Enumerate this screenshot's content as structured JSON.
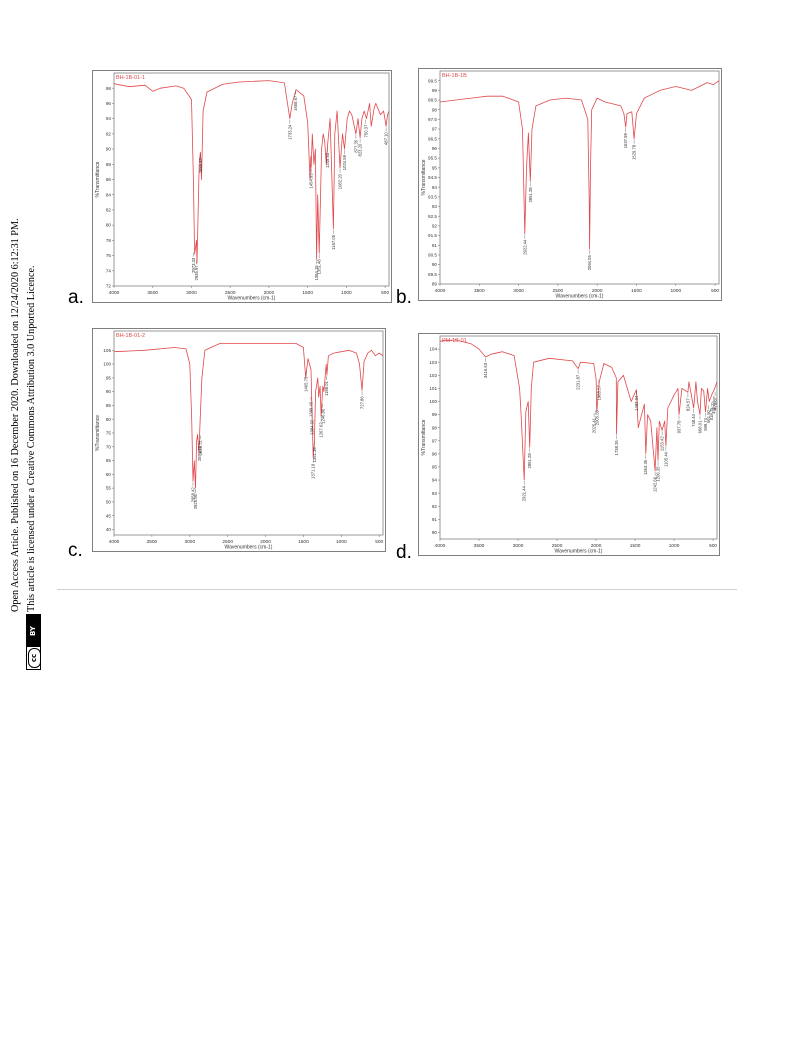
{
  "sidebar": {
    "line1": "Open Access Article. Published on 16 December 2020. Downloaded on 12/24/2020 6:12:31 PM.",
    "line2": "This article is licensed under a Creative Commons Attribution 3.0 Unported Licence.",
    "badge_cc": "cc",
    "badge_by": "BY"
  },
  "colors": {
    "spectrum": "#e0484c",
    "frame": "#7f7f7f",
    "text": "#333333"
  },
  "chart_data": [
    {
      "type": "line",
      "panel_label": "a.",
      "sample_id": "BH-1B-01-1",
      "xlabel": "Wavenumbers (cm-1)",
      "ylabel": "%Transmittance",
      "xlim": [
        4000,
        450
      ],
      "ylim": [
        72,
        100
      ],
      "xticks": [
        4000,
        3500,
        3000,
        2500,
        2000,
        1500,
        1000,
        500
      ],
      "yticks": [
        72,
        74,
        76,
        78,
        80,
        82,
        84,
        86,
        88,
        90,
        92,
        94,
        96,
        98
      ],
      "series": [
        {
          "x": [
            4000,
            3800,
            3600,
            3500,
            3400,
            3200,
            3100,
            3000,
            2975,
            2960,
            2935,
            2928,
            2900,
            2885,
            2870,
            2850,
            2800,
            2600,
            2400,
            2000,
            1800,
            1730,
            1700,
            1650,
            1550,
            1500,
            1470,
            1460,
            1454,
            1440,
            1420,
            1400,
            1384,
            1370,
            1351,
            1320,
            1300,
            1280,
            1260,
            1245,
            1210,
            1168,
            1150,
            1120,
            1082,
            1050,
            1025,
            990,
            960,
            930,
            877,
            850,
            823,
            800,
            770,
            740,
            700,
            680,
            640,
            620,
            600,
            560,
            520,
            487,
            470,
            450
          ],
          "y": [
            98.6,
            98.2,
            98.4,
            97.6,
            98.0,
            98.3,
            98.0,
            96.5,
            86.0,
            76.2,
            78.0,
            75.0,
            88.0,
            89.6,
            86.0,
            95.0,
            97.5,
            98.5,
            98.8,
            99.0,
            98.7,
            94.0,
            96.0,
            97.8,
            97.0,
            93.5,
            86.0,
            89.0,
            87.6,
            92.0,
            88.0,
            90.0,
            75.5,
            84.0,
            76.3,
            90.0,
            92.0,
            91.0,
            88.0,
            90.3,
            94.0,
            79.5,
            92.0,
            95.0,
            87.5,
            92.0,
            90.0,
            94.0,
            95.0,
            94.5,
            92.0,
            94.0,
            91.5,
            94.0,
            95.0,
            94.0,
            96.0,
            93.0,
            95.5,
            96.0,
            95.5,
            94.5,
            95.0,
            93.0,
            94.5,
            95.0
          ]
        }
      ],
      "annotations": [
        {
          "x": 2973,
          "y": 76.5,
          "label": "2973.33"
        },
        {
          "x": 2935,
          "y": 75.5,
          "label": "2935.97"
        },
        {
          "x": 2885,
          "y": 89.6,
          "label": "2885.42"
        },
        {
          "x": 1730,
          "y": 94.0,
          "label": "1733.24"
        },
        {
          "x": 1654,
          "y": 97.8,
          "label": "1658.67"
        },
        {
          "x": 1454,
          "y": 87.6,
          "label": "1454.93"
        },
        {
          "x": 1384,
          "y": 75.5,
          "label": "1384.15"
        },
        {
          "x": 1351,
          "y": 76.3,
          "label": "1351.48"
        },
        {
          "x": 1245,
          "y": 90.3,
          "label": "1245.53"
        },
        {
          "x": 1168,
          "y": 79.5,
          "label": "1167.05"
        },
        {
          "x": 1082,
          "y": 87.5,
          "label": "1082.20"
        },
        {
          "x": 1025,
          "y": 90.0,
          "label": "1024.59"
        },
        {
          "x": 877,
          "y": 92.0,
          "label": "877.35"
        },
        {
          "x": 823,
          "y": 91.5,
          "label": "823.20"
        },
        {
          "x": 750,
          "y": 94.0,
          "label": "750.37"
        },
        {
          "x": 487,
          "y": 93.0,
          "label": "487.10"
        }
      ]
    },
    {
      "type": "line",
      "panel_label": "b.",
      "sample_id": "BH-1B-1B",
      "xlabel": "Wavenumbers (cm-1)",
      "ylabel": "%Transmittance",
      "xlim": [
        4000,
        450
      ],
      "ylim": [
        89.0,
        100.0
      ],
      "xticks": [
        4000,
        3500,
        3000,
        2500,
        2000,
        1500,
        1000,
        500
      ],
      "yticks": [
        89.0,
        89.5,
        90.0,
        90.5,
        91.0,
        91.5,
        92.0,
        92.5,
        93.0,
        93.5,
        94.0,
        94.5,
        95.0,
        95.5,
        96.0,
        96.5,
        97.0,
        97.5,
        98.0,
        98.5,
        99.0,
        99.5
      ],
      "series": [
        {
          "x": [
            4000,
            3800,
            3600,
            3400,
            3200,
            3000,
            2950,
            2921,
            2900,
            2875,
            2851,
            2830,
            2780,
            2600,
            2400,
            2200,
            2120,
            2100,
            2096,
            2085,
            2070,
            2000,
            1900,
            1800,
            1700,
            1660,
            1637,
            1620,
            1560,
            1530,
            1500,
            1400,
            1300,
            1200,
            1100,
            1000,
            900,
            800,
            700,
            600,
            520,
            450
          ],
          "y": [
            98.4,
            98.5,
            98.6,
            98.7,
            98.7,
            98.4,
            97.0,
            91.6,
            95.0,
            96.8,
            94.3,
            97.0,
            98.2,
            98.5,
            98.6,
            98.5,
            97.5,
            93.0,
            90.8,
            95.0,
            98.0,
            98.6,
            98.4,
            98.3,
            98.2,
            97.8,
            97.1,
            97.8,
            97.9,
            96.5,
            97.8,
            98.6,
            98.8,
            99.0,
            99.1,
            99.2,
            99.1,
            99.0,
            99.2,
            99.4,
            99.3,
            99.5
          ]
        }
      ],
      "annotations": [
        {
          "x": 2921,
          "y": 91.6,
          "label": "2922.44"
        },
        {
          "x": 2851,
          "y": 94.3,
          "label": "2851.28"
        },
        {
          "x": 2096,
          "y": 90.8,
          "label": "2094.05"
        },
        {
          "x": 1637,
          "y": 97.1,
          "label": "1637.99"
        },
        {
          "x": 1530,
          "y": 96.5,
          "label": "1529.78"
        }
      ]
    },
    {
      "type": "line",
      "panel_label": "c.",
      "sample_id": "BH-1B-01-2",
      "xlabel": "Wavenumbers (cm-1)",
      "ylabel": "%Transmittance",
      "xlim": [
        4000,
        450
      ],
      "ylim": [
        38,
        112
      ],
      "xticks": [
        4000,
        3500,
        3000,
        2500,
        2000,
        1500,
        1000,
        500
      ],
      "yticks": [
        40,
        45,
        50,
        55,
        60,
        65,
        70,
        75,
        80,
        85,
        90,
        95,
        100,
        105
      ],
      "series": [
        {
          "x": [
            4000,
            3600,
            3200,
            3050,
            3000,
            2975,
            2958,
            2940,
            2925,
            2910,
            2897,
            2880,
            2860,
            2840,
            2800,
            2600,
            2300,
            2000,
            1600,
            1500,
            1470,
            1460,
            1440,
            1400,
            1385,
            1371,
            1355,
            1340,
            1310,
            1298,
            1280,
            1267,
            1245,
            1230,
            1200,
            1190,
            1170,
            1100,
            1000,
            900,
            800,
            760,
            727,
            700,
            650,
            600,
            550,
            500,
            450
          ],
          "y": [
            104.5,
            105.0,
            106.0,
            105.5,
            100.0,
            80.0,
            57.5,
            65.0,
            55.0,
            72.0,
            74.5,
            68.0,
            82.0,
            95.0,
            105.0,
            107.5,
            107.5,
            107.5,
            107.5,
            106.0,
            95.0,
            97.6,
            102.0,
            98.0,
            80.0,
            66.0,
            72.0,
            90.0,
            95.0,
            88.0,
            92.0,
            81.0,
            92.0,
            90.0,
            100.0,
            96.0,
            103.0,
            104.0,
            104.5,
            105.0,
            104.0,
            100.0,
            90.5,
            101.0,
            104.0,
            105.0,
            103.0,
            104.0,
            103.0
          ]
        }
      ],
      "annotations": [
        {
          "x": 2958,
          "y": 57.5,
          "label": "2958.42"
        },
        {
          "x": 2925,
          "y": 55.0,
          "label": "2925.56"
        },
        {
          "x": 2871,
          "y": 72.5,
          "label": "2871.75"
        },
        {
          "x": 2858,
          "y": 74.5,
          "label": "2856.72"
        },
        {
          "x": 1465,
          "y": 97.6,
          "label": "1465.75"
        },
        {
          "x": 1400,
          "y": 88.5,
          "label": "1399.40"
        },
        {
          "x": 1385,
          "y": 82.0,
          "label": "1384.92"
        },
        {
          "x": 1371,
          "y": 66.0,
          "label": "1371.19"
        },
        {
          "x": 1355,
          "y": 72.0,
          "label": "1351.39"
        },
        {
          "x": 1267,
          "y": 81.0,
          "label": "1267.62"
        },
        {
          "x": 1245,
          "y": 86.0,
          "label": "1246.86"
        },
        {
          "x": 1196,
          "y": 96.0,
          "label": "1198.01"
        },
        {
          "x": 727,
          "y": 90.5,
          "label": "727.86"
        }
      ]
    },
    {
      "type": "line",
      "panel_label": "d.",
      "sample_id": "PM-1B-01",
      "xlabel": "Wavenumbers (cm-1)",
      "ylabel": "%Transmittance",
      "xlim": [
        4000,
        450
      ],
      "ylim": [
        89.5,
        105
      ],
      "xticks": [
        4000,
        3500,
        3000,
        2500,
        2000,
        1500,
        1000,
        500
      ],
      "yticks": [
        90,
        91,
        92,
        93,
        94,
        95,
        96,
        97,
        98,
        99,
        100,
        101,
        102,
        103,
        104
      ],
      "series": [
        {
          "x": [
            4000,
            3800,
            3600,
            3500,
            3416,
            3350,
            3200,
            3050,
            2980,
            2960,
            2921,
            2900,
            2870,
            2851,
            2830,
            2800,
            2600,
            2300,
            2230,
            2200,
            2030,
            2000,
            1990,
            1960,
            1900,
            1800,
            1740,
            1738,
            1720,
            1650,
            1600,
            1550,
            1483,
            1460,
            1380,
            1363,
            1340,
            1300,
            1243,
            1220,
            1206,
            1190,
            1153,
            1120,
            1105,
            1080,
            1000,
            950,
            937,
            900,
            823,
            810,
            748,
            720,
            700,
            668,
            650,
            620,
            598,
            570,
            550,
            518,
            480,
            450
          ],
          "y": [
            104.6,
            104.7,
            104.4,
            104.0,
            103.4,
            103.6,
            103.8,
            103.5,
            101.0,
            99.0,
            94.0,
            99.2,
            100.0,
            96.5,
            101.0,
            103.0,
            103.3,
            103.1,
            102.5,
            103.0,
            102.9,
            101.7,
            99.2,
            101.5,
            102.9,
            102.6,
            101.8,
            97.5,
            101.5,
            102.0,
            101.0,
            100.0,
            100.9,
            98.0,
            99.8,
            96.0,
            99.0,
            98.5,
            94.7,
            98.0,
            95.5,
            98.5,
            97.8,
            98.5,
            96.6,
            99.5,
            100.5,
            101.0,
            99.0,
            101.0,
            100.7,
            101.5,
            99.5,
            101.5,
            100.0,
            99.0,
            101.0,
            100.8,
            99.2,
            101.0,
            100.0,
            100.5,
            101.0,
            101.5
          ]
        }
      ],
      "annotations": [
        {
          "x": 3416,
          "y": 103.4,
          "label": "3416.63"
        },
        {
          "x": 2921,
          "y": 94.0,
          "label": "2921.44"
        },
        {
          "x": 2851,
          "y": 96.5,
          "label": "2851.28"
        },
        {
          "x": 2230,
          "y": 102.5,
          "label": "2231.87"
        },
        {
          "x": 2025,
          "y": 99.2,
          "label": "2025.41"
        },
        {
          "x": 1990,
          "y": 99.8,
          "label": "2005.55"
        },
        {
          "x": 1965,
          "y": 101.7,
          "label": "1965.57"
        },
        {
          "x": 1738,
          "y": 97.5,
          "label": "1738.26"
        },
        {
          "x": 1483,
          "y": 100.9,
          "label": "1482.34"
        },
        {
          "x": 1363,
          "y": 96.0,
          "label": "1363.35"
        },
        {
          "x": 1243,
          "y": 94.7,
          "label": "1242.66"
        },
        {
          "x": 1206,
          "y": 95.5,
          "label": "1206.35"
        },
        {
          "x": 1153,
          "y": 97.8,
          "label": "1153.42"
        },
        {
          "x": 1105,
          "y": 96.6,
          "label": "1105.44"
        },
        {
          "x": 937,
          "y": 99.0,
          "label": "937.78"
        },
        {
          "x": 823,
          "y": 100.7,
          "label": "824.57"
        },
        {
          "x": 748,
          "y": 99.5,
          "label": "748.40"
        },
        {
          "x": 668,
          "y": 99.0,
          "label": "668.01"
        },
        {
          "x": 598,
          "y": 99.2,
          "label": "599.74"
        },
        {
          "x": 560,
          "y": 99.8,
          "label": "561.50"
        },
        {
          "x": 518,
          "y": 100.0,
          "label": "518.75"
        },
        {
          "x": 490,
          "y": 100.5,
          "label": "490.00"
        },
        {
          "x": 475,
          "y": 100.8,
          "label": "475.87"
        }
      ]
    }
  ]
}
